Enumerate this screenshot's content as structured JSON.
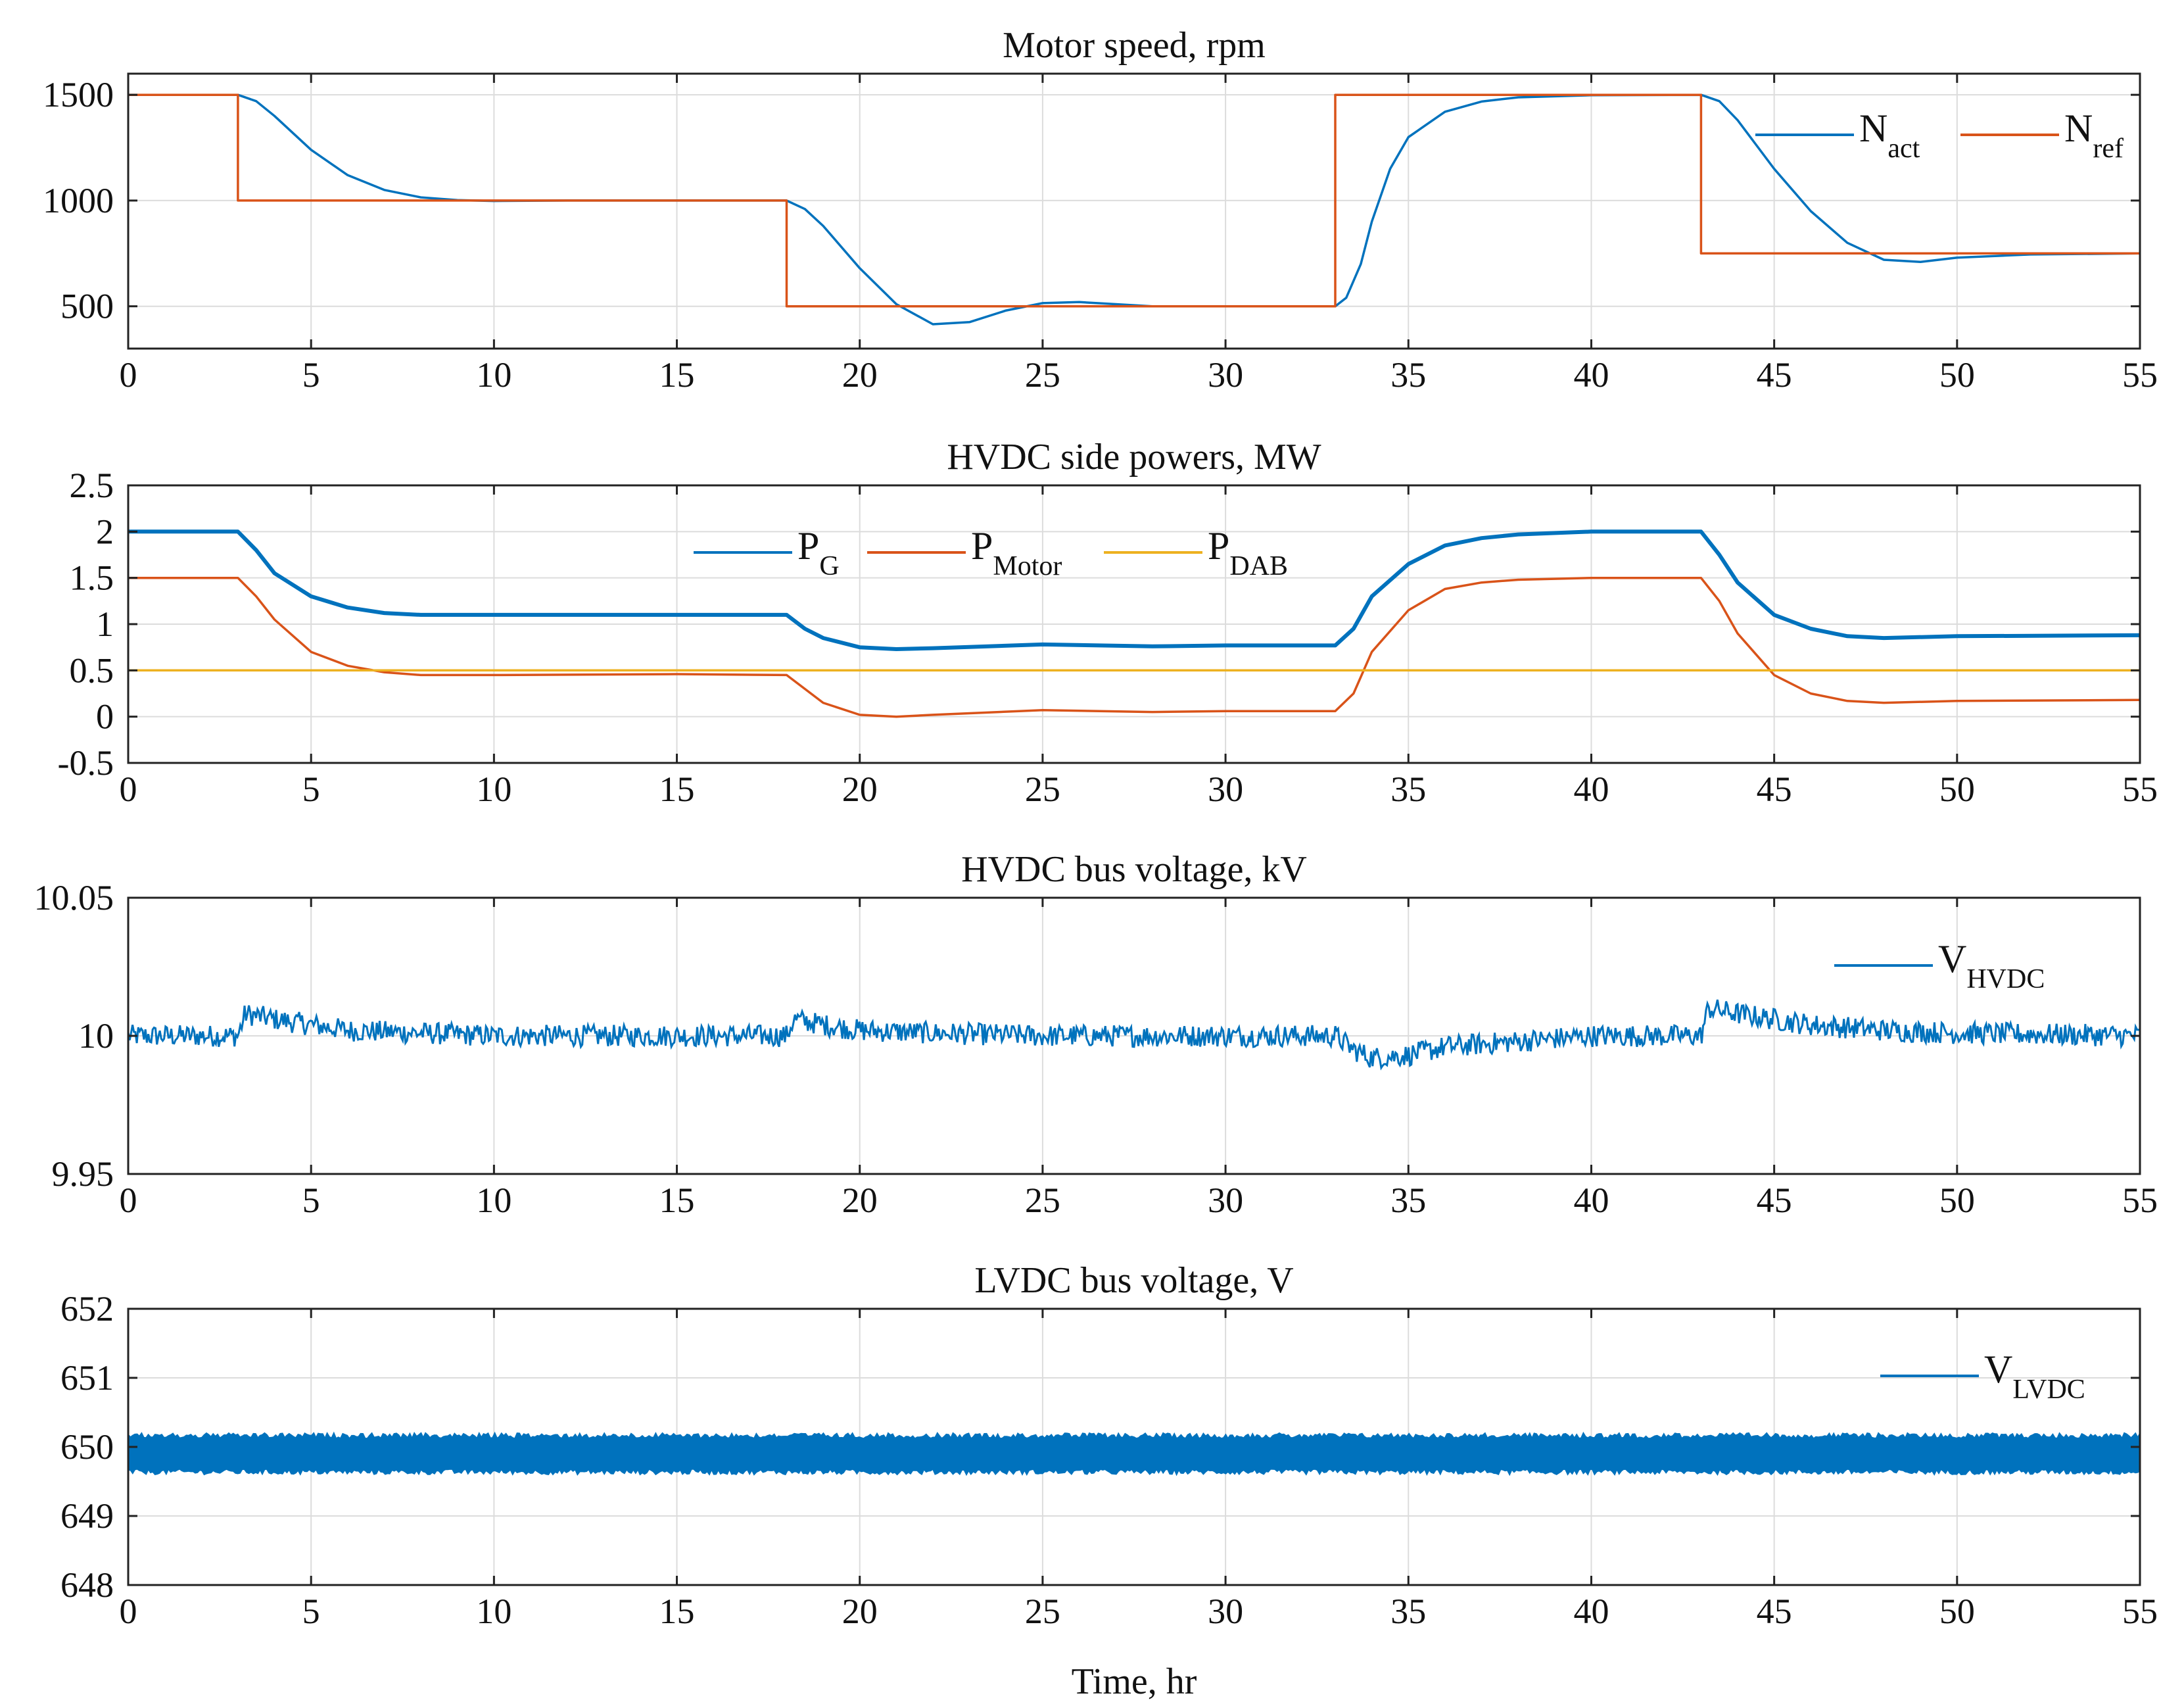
{
  "figure": {
    "xlabel": "Time, hr",
    "colors": {
      "blue": "#0072BD",
      "orange": "#D95319",
      "yellow": "#EDB120"
    }
  },
  "chart_data": [
    {
      "type": "line",
      "title": "Motor speed, rpm",
      "xlabel": "",
      "ylabel": "",
      "xlim": [
        0,
        55
      ],
      "ylim": [
        300,
        1600
      ],
      "xticks": [
        0,
        5,
        10,
        15,
        20,
        25,
        30,
        35,
        40,
        45,
        50,
        55
      ],
      "yticks": [
        500,
        1000,
        1500
      ],
      "ytick_labels": [
        "500",
        "1000",
        "1500"
      ],
      "grid": true,
      "legend_position": "top-right",
      "series": [
        {
          "name": "N_act",
          "label_main": "N",
          "label_sub": "act",
          "color": "#0072BD",
          "x": [
            0,
            3,
            3.5,
            4,
            5,
            6,
            7,
            8,
            9,
            10,
            12,
            15,
            18,
            18.5,
            19,
            20,
            21,
            22,
            23,
            24,
            25,
            26,
            27,
            28,
            30,
            33,
            33.3,
            33.7,
            34,
            34.5,
            35,
            36,
            37,
            38,
            40,
            43,
            43.5,
            44,
            45,
            46,
            47,
            48,
            49,
            50,
            52,
            55
          ],
          "values": [
            1500,
            1500,
            1470,
            1400,
            1240,
            1120,
            1050,
            1015,
            1002,
            998,
            1000,
            1000,
            1000,
            960,
            880,
            680,
            510,
            415,
            425,
            480,
            515,
            520,
            510,
            500,
            500,
            500,
            540,
            700,
            900,
            1150,
            1300,
            1420,
            1468,
            1488,
            1498,
            1500,
            1470,
            1380,
            1150,
            950,
            800,
            720,
            710,
            730,
            745,
            750
          ]
        },
        {
          "name": "N_ref",
          "label_main": "N",
          "label_sub": "ref",
          "color": "#D95319",
          "x": [
            0,
            3,
            3,
            18,
            18,
            33,
            33,
            43,
            43,
            55
          ],
          "values": [
            1500,
            1500,
            1000,
            1000,
            500,
            500,
            1500,
            1500,
            750,
            750
          ]
        }
      ]
    },
    {
      "type": "line",
      "title": "HVDC side powers, MW",
      "xlabel": "",
      "ylabel": "",
      "xlim": [
        0,
        55
      ],
      "ylim": [
        -0.5,
        2.5
      ],
      "xticks": [
        0,
        5,
        10,
        15,
        20,
        25,
        30,
        35,
        40,
        45,
        50,
        55
      ],
      "yticks": [
        -0.5,
        0,
        0.5,
        1,
        1.5,
        2,
        2.5
      ],
      "ytick_labels": [
        "-0.5",
        "0",
        "0.5",
        "1",
        "1.5",
        "2",
        "2.5"
      ],
      "grid": true,
      "legend_position": "top-center",
      "series": [
        {
          "name": "P_G",
          "label_main": "P",
          "label_sub": "G",
          "color": "#0072BD",
          "x": [
            0,
            3,
            3.5,
            4,
            5,
            6,
            7,
            8,
            10,
            15,
            18,
            18.5,
            19,
            20,
            21,
            22,
            25,
            28,
            30,
            33,
            33.5,
            34,
            35,
            36,
            37,
            38,
            40,
            43,
            43.5,
            44,
            45,
            46,
            47,
            48,
            50,
            55
          ],
          "values": [
            2.0,
            2.0,
            1.8,
            1.55,
            1.3,
            1.18,
            1.12,
            1.1,
            1.1,
            1.1,
            1.1,
            0.95,
            0.85,
            0.75,
            0.73,
            0.74,
            0.78,
            0.76,
            0.77,
            0.77,
            0.95,
            1.3,
            1.65,
            1.85,
            1.93,
            1.97,
            2.0,
            2.0,
            1.75,
            1.45,
            1.1,
            0.95,
            0.87,
            0.85,
            0.87,
            0.88
          ]
        },
        {
          "name": "P_Motor",
          "label_main": "P",
          "label_sub": "Motor",
          "color": "#D95319",
          "x": [
            0,
            3,
            3.5,
            4,
            5,
            6,
            7,
            8,
            10,
            15,
            18,
            18.5,
            19,
            20,
            21,
            22,
            25,
            28,
            30,
            33,
            33.5,
            34,
            35,
            36,
            37,
            38,
            40,
            43,
            43.5,
            44,
            45,
            46,
            47,
            48,
            50,
            55
          ],
          "values": [
            1.5,
            1.5,
            1.3,
            1.05,
            0.7,
            0.55,
            0.48,
            0.45,
            0.45,
            0.46,
            0.45,
            0.3,
            0.15,
            0.02,
            0.0,
            0.02,
            0.07,
            0.05,
            0.06,
            0.06,
            0.25,
            0.7,
            1.15,
            1.38,
            1.45,
            1.48,
            1.5,
            1.5,
            1.25,
            0.9,
            0.45,
            0.25,
            0.17,
            0.15,
            0.17,
            0.18
          ]
        },
        {
          "name": "P_DAB",
          "label_main": "P",
          "label_sub": "DAB",
          "color": "#EDB120",
          "x": [
            0,
            55
          ],
          "values": [
            0.5,
            0.5
          ]
        }
      ]
    },
    {
      "type": "line",
      "title": "HVDC bus voltage, kV",
      "xlabel": "",
      "ylabel": "",
      "xlim": [
        0,
        55
      ],
      "ylim": [
        9.95,
        10.05
      ],
      "xticks": [
        0,
        5,
        10,
        15,
        20,
        25,
        30,
        35,
        40,
        45,
        50,
        55
      ],
      "yticks": [
        9.95,
        10,
        10.05
      ],
      "ytick_labels": [
        "9.95",
        "10",
        "10.05"
      ],
      "grid": true,
      "legend_position": "top-right",
      "series": [
        {
          "name": "V_HVDC",
          "label_main": "V",
          "label_sub": "HVDC",
          "color": "#0072BD",
          "ripple_kv": 0.004,
          "x": [
            0,
            3,
            3.2,
            4,
            5,
            6,
            8,
            10,
            15,
            18,
            18.2,
            19,
            20,
            22,
            25,
            30,
            33,
            33.5,
            34,
            35,
            36,
            38,
            40,
            43,
            43.2,
            44,
            45,
            46,
            48,
            50,
            55
          ],
          "values": [
            10.0,
            10.0,
            10.008,
            10.006,
            10.004,
            10.002,
            10.001,
            10.0,
            10.0,
            10.0,
            10.006,
            10.004,
            10.002,
            10.001,
            10.0,
            10.0,
            10.0,
            9.995,
            9.992,
            9.993,
            9.996,
            9.998,
            10.0,
            10.0,
            10.01,
            10.008,
            10.006,
            10.004,
            10.002,
            10.001,
            10.0
          ]
        }
      ]
    },
    {
      "type": "line",
      "title": "LVDC bus voltage, V",
      "xlabel": "Time, hr",
      "ylabel": "",
      "xlim": [
        0,
        55
      ],
      "ylim": [
        648,
        652
      ],
      "xticks": [
        0,
        5,
        10,
        15,
        20,
        25,
        30,
        35,
        40,
        45,
        50,
        55
      ],
      "yticks": [
        648,
        649,
        650,
        651,
        652
      ],
      "ytick_labels": [
        "648",
        "649",
        "650",
        "651",
        "652"
      ],
      "grid": true,
      "legend_position": "top-right",
      "series": [
        {
          "name": "V_LVDC",
          "label_main": "V",
          "label_sub": "LVDC",
          "color": "#0072BD",
          "band_low": 649.6,
          "band_high": 650.2,
          "x": [
            0,
            55
          ],
          "values": [
            649.9,
            649.9
          ]
        }
      ]
    }
  ]
}
